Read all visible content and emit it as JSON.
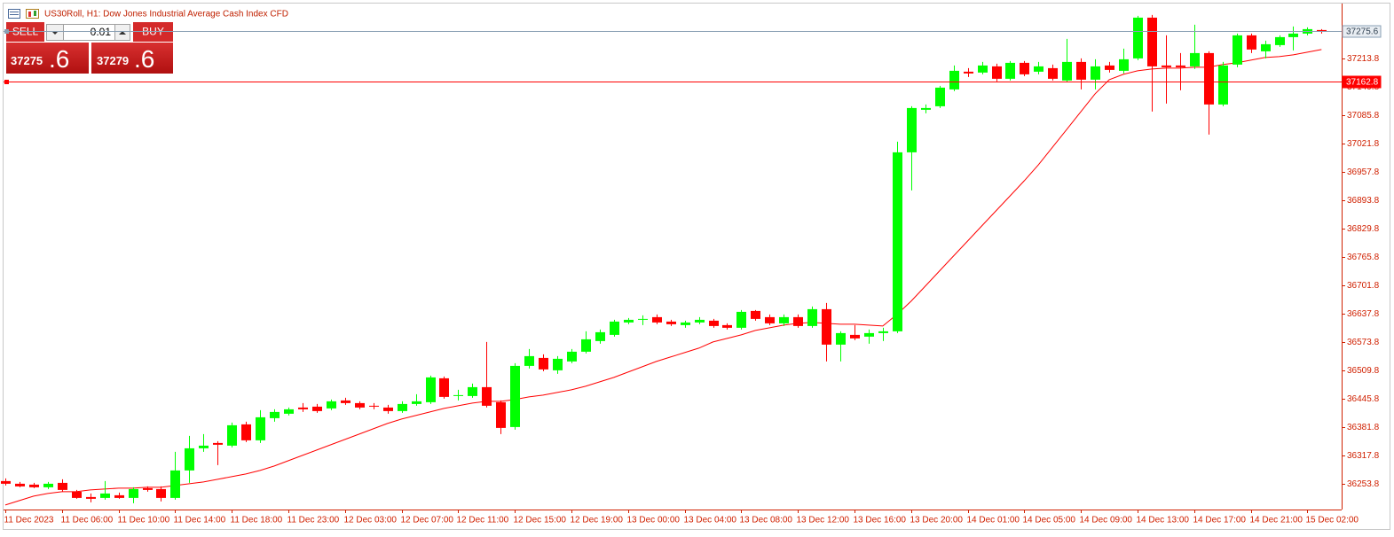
{
  "header": {
    "title": "US30Roll, H1:  Dow Jones Industrial Average Cash Index CFD"
  },
  "trade_panel": {
    "sell_label": "SELL",
    "buy_label": "BUY",
    "volume": "0.01",
    "bid_main": "37275",
    "bid_frac": ".6",
    "ask_main": "37279",
    "ask_frac": ".6"
  },
  "chart_data": {
    "type": "candlestick",
    "categories": [
      "11 Dec 2023",
      null,
      null,
      null,
      "11 Dec 06:00",
      null,
      null,
      null,
      "11 Dec 10:00",
      null,
      null,
      null,
      "11 Dec 14:00",
      null,
      null,
      null,
      "11 Dec 18:00",
      null,
      null,
      null,
      "11 Dec 23:00",
      null,
      null,
      null,
      "12 Dec 03:00",
      null,
      null,
      null,
      "12 Dec 07:00",
      null,
      null,
      null,
      "12 Dec 11:00",
      null,
      null,
      null,
      "12 Dec 15:00",
      null,
      null,
      null,
      "12 Dec 19:00",
      null,
      null,
      null,
      "13 Dec 00:00",
      null,
      null,
      null,
      "13 Dec 04:00",
      null,
      null,
      null,
      "13 Dec 08:00",
      null,
      null,
      null,
      "13 Dec 12:00",
      null,
      null,
      null,
      "13 Dec 16:00",
      null,
      null,
      null,
      "13 Dec 20:00",
      null,
      null,
      null,
      "14 Dec 01:00",
      null,
      null,
      null,
      "14 Dec 05:00",
      null,
      null,
      null,
      "14 Dec 09:00",
      null,
      null,
      null,
      "14 Dec 13:00",
      null,
      null,
      null,
      "14 Dec 17:00",
      null,
      null,
      null,
      "14 Dec 21:00",
      null,
      null,
      null,
      "15 Dec 02:00",
      null
    ],
    "open": [
      36260,
      36254,
      36252,
      36246,
      36256,
      36236,
      36224,
      36222,
      36228,
      36222,
      36244,
      36242,
      36222,
      36284,
      36334,
      36346,
      36340,
      36388,
      36352,
      36402,
      36412,
      36426,
      36428,
      36424,
      36442,
      36436,
      36430,
      36426,
      36418,
      36434,
      36438,
      36492,
      36452,
      36452,
      36472,
      36438,
      36382,
      36520,
      36538,
      36510,
      36530,
      36552,
      36576,
      36590,
      36618,
      36624,
      36630,
      36620,
      36612,
      36618,
      36622,
      36612,
      36606,
      36644,
      36630,
      36616,
      36630,
      36610,
      36648,
      36568,
      36590,
      36586,
      36594,
      36598,
      37002,
      37098,
      37106,
      37144,
      37184,
      37182,
      37196,
      37168,
      37204,
      37184,
      37192,
      37164,
      37206,
      37166,
      37198,
      37186,
      37214,
      37306,
      37198,
      37198,
      37196,
      37226,
      37110,
      37200,
      37266,
      37230,
      37244,
      37262,
      37270,
      37278
    ],
    "high": [
      36266,
      36258,
      36256,
      36258,
      36264,
      36240,
      36232,
      36260,
      36234,
      36246,
      36248,
      36248,
      36326,
      36362,
      36366,
      36350,
      36392,
      36394,
      36420,
      36422,
      36426,
      36436,
      36434,
      36444,
      36448,
      36440,
      36436,
      36432,
      36440,
      36456,
      36498,
      36496,
      36466,
      36480,
      36574,
      36442,
      36526,
      36558,
      36546,
      36542,
      36558,
      36598,
      36602,
      36624,
      36628,
      36634,
      36636,
      36624,
      36622,
      36630,
      36626,
      36616,
      36646,
      36646,
      36636,
      36636,
      36636,
      36654,
      36662,
      36598,
      36612,
      36602,
      36606,
      37026,
      37106,
      37110,
      37152,
      37198,
      37192,
      37206,
      37202,
      37208,
      37208,
      37206,
      37200,
      37258,
      37214,
      37212,
      37206,
      37236,
      37310,
      37312,
      37266,
      37226,
      37290,
      37230,
      37206,
      37270,
      37270,
      37254,
      37266,
      37286,
      37284,
      37280
    ],
    "low": [
      36250,
      36246,
      36244,
      36242,
      36236,
      36220,
      36212,
      36218,
      36220,
      36210,
      36236,
      36214,
      36218,
      36256,
      36326,
      36296,
      36336,
      36348,
      36346,
      36394,
      36408,
      36416,
      36414,
      36420,
      36432,
      36422,
      36422,
      36412,
      36414,
      36430,
      36434,
      36446,
      36442,
      36448,
      36426,
      36366,
      36376,
      36514,
      36508,
      36502,
      36526,
      36548,
      36570,
      36586,
      36614,
      36612,
      36614,
      36610,
      36606,
      36614,
      36606,
      36602,
      36602,
      36622,
      36612,
      36610,
      36606,
      36606,
      36530,
      36530,
      36578,
      36570,
      36576,
      36594,
      36916,
      37090,
      37102,
      37140,
      37172,
      37178,
      37162,
      37164,
      37174,
      37178,
      37164,
      37160,
      37144,
      37144,
      37182,
      37180,
      37210,
      37094,
      37112,
      37142,
      37190,
      37042,
      37106,
      37194,
      37226,
      37214,
      37240,
      37232,
      37266,
      37270
    ],
    "close": [
      36254,
      36248,
      36246,
      36254,
      36240,
      36222,
      36220,
      36232,
      36222,
      36242,
      36240,
      36222,
      36284,
      36334,
      36340,
      36342,
      36386,
      36352,
      36404,
      36416,
      36422,
      36422,
      36418,
      36440,
      36436,
      36426,
      36428,
      36418,
      36434,
      36440,
      36494,
      36450,
      36454,
      36472,
      36430,
      36380,
      36520,
      36542,
      36512,
      36536,
      36552,
      36580,
      36596,
      36620,
      36624,
      36626,
      36618,
      36614,
      36618,
      36624,
      36610,
      36606,
      36642,
      36626,
      36616,
      36630,
      36610,
      36648,
      36568,
      36594,
      36582,
      36594,
      36598,
      37002,
      37102,
      37102,
      37148,
      37186,
      37180,
      37198,
      37168,
      37204,
      37178,
      37196,
      37168,
      37206,
      37166,
      37196,
      37188,
      37212,
      37306,
      37196,
      37194,
      37194,
      37226,
      37110,
      37198,
      37266,
      37234,
      37246,
      37262,
      37270,
      37280,
      37274
    ],
    "up_color": "#00ff00",
    "down_color": "#ff0000",
    "overlay_color": "#ff0000",
    "overlay_values": [
      36206,
      36216,
      36226,
      36232,
      36236,
      36236,
      36240,
      36242,
      36244,
      36244,
      36246,
      36246,
      36250,
      36254,
      36258,
      36264,
      36270,
      36276,
      36284,
      36294,
      36306,
      36318,
      36330,
      36342,
      36354,
      36366,
      36378,
      36390,
      36400,
      36408,
      36416,
      36424,
      36430,
      36436,
      36440,
      36440,
      36444,
      36450,
      36454,
      36460,
      36466,
      36474,
      36484,
      36494,
      36506,
      36518,
      36530,
      36540,
      36550,
      36560,
      36574,
      36582,
      36590,
      36600,
      36606,
      36612,
      36616,
      36618,
      36616,
      36614,
      36614,
      36612,
      36610,
      36636,
      36666,
      36700,
      36734,
      36768,
      36802,
      36836,
      36870,
      36904,
      36938,
      36974,
      37014,
      37054,
      37094,
      37134,
      37166,
      37178,
      37186,
      37190,
      37192,
      37192,
      37194,
      37194,
      37200,
      37204,
      37210,
      37216,
      37218,
      37222,
      37228,
      37234
    ],
    "ylim": [
      36199.8,
      37335.8
    ],
    "yticks": [
      36253.8,
      36317.8,
      36381.8,
      36445.8,
      36509.8,
      36573.8,
      36637.8,
      36701.8,
      36765.8,
      36829.8,
      36893.8,
      36957.8,
      37021.8,
      37085.8,
      37149.8,
      37213.8
    ],
    "hlines": [
      {
        "value": 37275.6,
        "color": "#8aa0b4"
      },
      {
        "value": 37162.8,
        "color": "#ff0000"
      }
    ],
    "grid": false
  }
}
